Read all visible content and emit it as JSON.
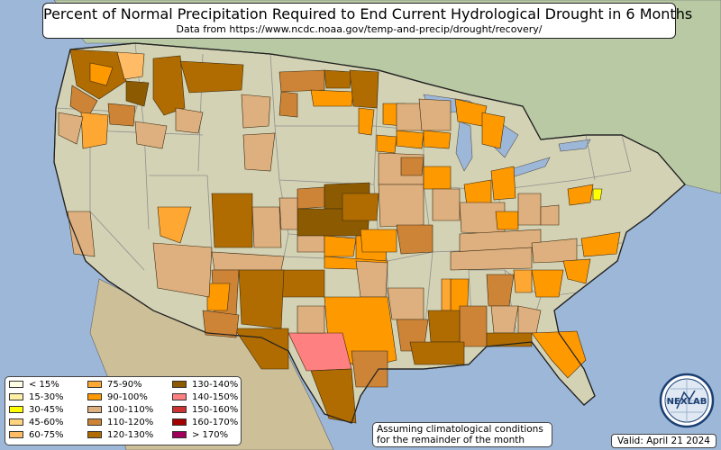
{
  "title": "Percent of Normal Precipitation Required to End Current Hydrological Drought in 6 Months",
  "subtitle": "Data from https://www.ncdc.noaa.gov/temp-and-precip/drought/recovery/",
  "note_line1": "Assuming climatological conditions",
  "note_line2": "for the remainder of the month",
  "valid": "Valid: April 21 2024",
  "logo_text": "NEXLAB",
  "colors": {
    "ocean": "#9db7d8",
    "land": "#d4d2b4",
    "canada": "#b8c9a4",
    "mexico": "#cdbf98",
    "state_line": "#8f8f8f",
    "border": "#222222"
  },
  "legend": [
    {
      "label": "< 15%",
      "color": "#ffffe5"
    },
    {
      "label": "15-30%",
      "color": "#fff0a8"
    },
    {
      "label": "30-45%",
      "color": "#ffff00"
    },
    {
      "label": "45-60%",
      "color": "#ffd37f"
    },
    {
      "label": "60-75%",
      "color": "#ffbb66"
    },
    {
      "label": "75-90%",
      "color": "#ffa733"
    },
    {
      "label": "90-100%",
      "color": "#ff9900"
    },
    {
      "label": "100-110%",
      "color": "#deb07f"
    },
    {
      "label": "110-120%",
      "color": "#cd8437"
    },
    {
      "label": "120-130%",
      "color": "#b06c00"
    },
    {
      "label": "130-140%",
      "color": "#8c5a00"
    },
    {
      "label": "140-150%",
      "color": "#ff8080"
    },
    {
      "label": "150-160%",
      "color": "#cc3333"
    },
    {
      "label": "160-170%",
      "color": "#a50000"
    },
    {
      "label": "> 170%",
      "color": "#a0005a"
    }
  ]
}
